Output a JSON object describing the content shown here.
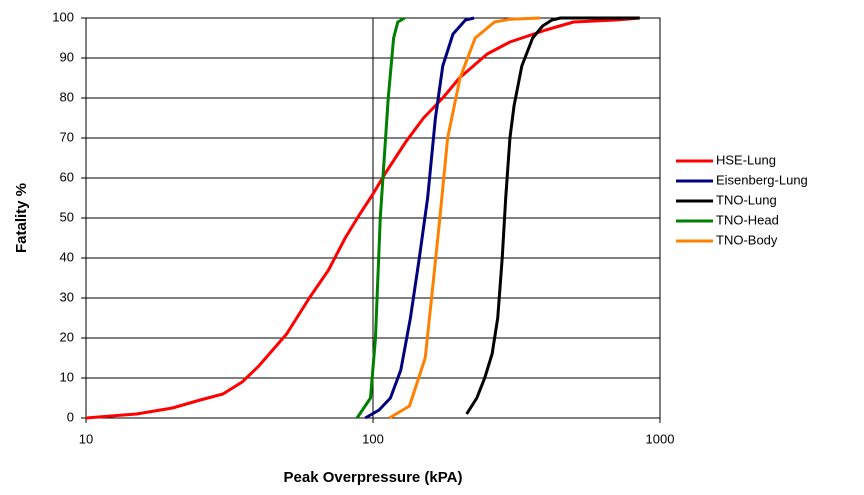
{
  "chart_data": {
    "type": "line",
    "xlabel": "Peak Overpressure (kPA)",
    "ylabel": "Fatality %",
    "xscale": "log",
    "xlim": [
      10,
      1000
    ],
    "xticks": [
      10,
      100,
      1000
    ],
    "ylim": [
      0,
      100
    ],
    "yticks": [
      0,
      10,
      20,
      30,
      40,
      50,
      60,
      70,
      80,
      90,
      100
    ],
    "grid": true,
    "legend": "right",
    "series": [
      {
        "name": "HSE-Lung",
        "color": "#ff0000",
        "x": [
          10,
          15,
          20,
          25,
          30,
          35,
          40,
          50,
          60,
          70,
          80,
          90,
          100,
          110,
          130,
          150,
          175,
          200,
          250,
          300,
          400,
          500,
          700,
          850
        ],
        "values": [
          0,
          1,
          2.5,
          4.5,
          6,
          9,
          13,
          21,
          30,
          37,
          45,
          51,
          56,
          61,
          69,
          75,
          80,
          85,
          91,
          94,
          97,
          99,
          99.5,
          100
        ]
      },
      {
        "name": "Eisenberg-Lung",
        "color": "#000080",
        "x": [
          94,
          105,
          115,
          125,
          135,
          145,
          155,
          165,
          175,
          190,
          210,
          225
        ],
        "values": [
          0,
          2,
          5,
          12,
          25,
          40,
          55,
          75,
          88,
          96,
          99.5,
          100
        ]
      },
      {
        "name": "TNO-Lung",
        "color": "#000000",
        "x": [
          212,
          230,
          245,
          260,
          272,
          282,
          290,
          300,
          310,
          330,
          360,
          390,
          420,
          450,
          600,
          850
        ],
        "values": [
          1,
          5,
          10,
          16,
          25,
          40,
          55,
          70,
          78,
          88,
          95,
          98,
          99.5,
          100,
          100,
          100
        ]
      },
      {
        "name": "TNO-Head",
        "color": "#008000",
        "x": [
          88,
          98,
          102,
          106,
          113,
          118,
          122,
          129
        ],
        "values": [
          0,
          5,
          20,
          50,
          80,
          95,
          99,
          100
        ]
      },
      {
        "name": "TNO-Body",
        "color": "#ff8000",
        "x": [
          114,
          134,
          152,
          160,
          171,
          182,
          201,
          227,
          265,
          300,
          382
        ],
        "values": [
          0,
          3,
          15,
          30,
          50,
          70,
          85,
          95,
          99,
          99.7,
          100
        ]
      }
    ]
  }
}
